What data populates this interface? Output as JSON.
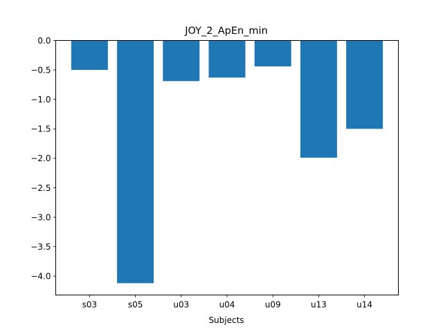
{
  "chart_data": {
    "type": "bar",
    "title": "JOY_2_ApEn_min",
    "xlabel": "Subjects",
    "ylabel": "",
    "categories": [
      "s03",
      "s05",
      "u03",
      "u04",
      "u09",
      "u13",
      "u14"
    ],
    "values": [
      -0.5,
      -4.12,
      -0.69,
      -0.63,
      -0.44,
      -1.99,
      -1.5
    ],
    "ylim": [
      -4.32,
      0.0
    ],
    "yticks": [
      0.0,
      -0.5,
      -1.0,
      -1.5,
      -2.0,
      -2.5,
      -3.0,
      -3.5,
      -4.0
    ],
    "ytick_labels": [
      "0.0",
      "−0.5",
      "−1.0",
      "−1.5",
      "−2.0",
      "−2.5",
      "−3.0",
      "−3.5",
      "−4.0"
    ],
    "grid": false,
    "bar_color": "#1f77b4"
  }
}
